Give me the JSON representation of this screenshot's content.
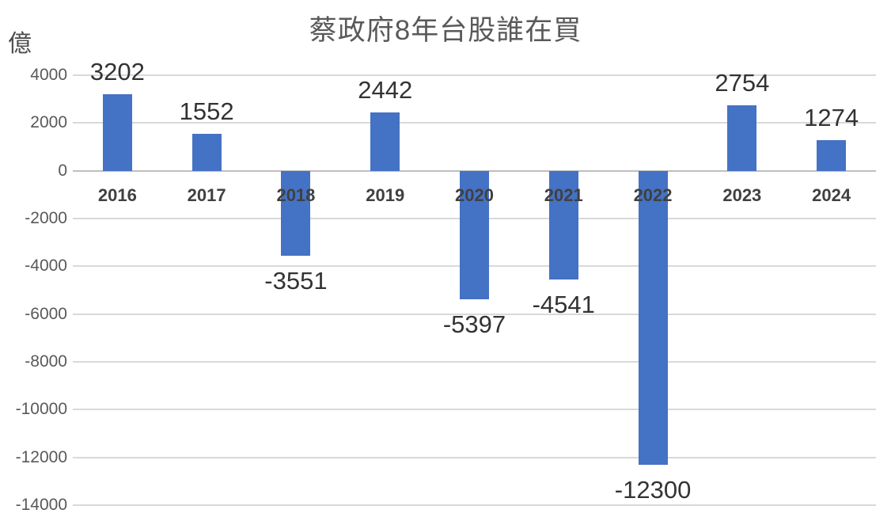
{
  "chart_data": {
    "type": "bar",
    "title": "蔡政府8年台股誰在買",
    "unit_label": "億",
    "categories": [
      "2016",
      "2017",
      "2018",
      "2019",
      "2020",
      "2021",
      "2022",
      "2023",
      "2024"
    ],
    "values": [
      3202,
      1552,
      -3551,
      2442,
      -5397,
      -4541,
      -12300,
      2754,
      1274
    ],
    "data_labels": [
      "3202",
      "1552",
      "-3551",
      "2442",
      "-5397",
      "-4541",
      "-12300",
      "2754",
      "1274"
    ],
    "y_ticks": [
      4000,
      2000,
      0,
      -2000,
      -4000,
      -6000,
      -8000,
      -10000,
      -12000,
      -14000
    ],
    "ylim": [
      -14000,
      4000
    ],
    "xlabel": "",
    "ylabel": "億",
    "grid": true,
    "legend_position": "none",
    "colors": {
      "bar": "#4472C4",
      "gridline": "#D9D9D9",
      "zero_line": "#BFBFBF",
      "title": "#595959",
      "y_tick_label": "#595959",
      "category_label": "#404040",
      "data_label": "#333333",
      "background": "#FFFFFF"
    }
  }
}
